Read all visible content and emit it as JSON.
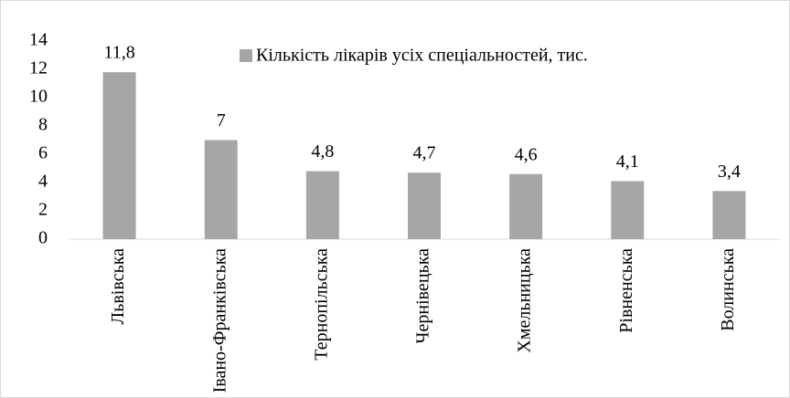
{
  "chart_data": {
    "type": "bar",
    "categories": [
      "Львівська",
      "Івано-Франківська",
      "Тернопільська",
      "Чернівецька",
      "Хмельницька",
      "Рівненська",
      "Волинська"
    ],
    "series": [
      {
        "name": "Кількість лікарів усіх спеціальностей, тис.",
        "color": "#a6a6a6",
        "values": [
          11.8,
          7,
          4.8,
          4.7,
          4.6,
          4.1,
          3.4
        ],
        "value_labels": [
          "11,8",
          "7",
          "4,8",
          "4,7",
          "4,6",
          "4,1",
          "3,4"
        ]
      }
    ],
    "ylim": [
      0,
      14
    ],
    "yticks": [
      0,
      2,
      4,
      6,
      8,
      10,
      12,
      14
    ],
    "grid": false,
    "legend": "top"
  }
}
